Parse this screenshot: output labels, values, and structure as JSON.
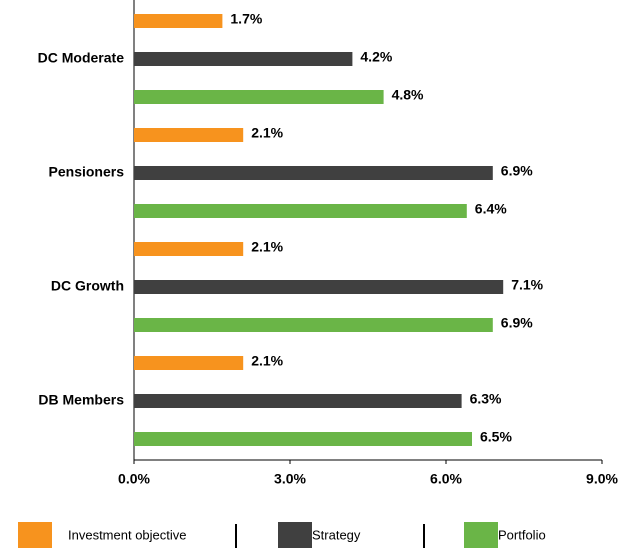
{
  "chart_data": {
    "type": "bar",
    "orientation": "horizontal",
    "categories": [
      "DC Moderate",
      "Pensioners",
      "DC Growth",
      "DB Members"
    ],
    "series": [
      {
        "name": "Investment objective",
        "color": "#f7931e",
        "values": [
          1.7,
          2.1,
          2.1,
          2.1
        ],
        "value_labels": [
          "1.7%",
          "2.1%",
          "2.1%",
          "2.1%"
        ]
      },
      {
        "name": "Strategy",
        "color": "#404040",
        "values": [
          4.2,
          6.9,
          7.1,
          6.3
        ],
        "value_labels": [
          "4.2%",
          "6.9%",
          "7.1%",
          "6.3%"
        ]
      },
      {
        "name": "Portfolio",
        "color": "#6ab547",
        "values": [
          4.8,
          6.4,
          6.9,
          6.5
        ],
        "value_labels": [
          "4.8%",
          "6.4%",
          "6.9%",
          "6.5%"
        ]
      }
    ],
    "xlim": [
      0,
      9
    ],
    "xticks": [
      {
        "value": 0,
        "label": "0.0%"
      },
      {
        "value": 3,
        "label": "3.0%"
      },
      {
        "value": 6,
        "label": "6.0%"
      },
      {
        "value": 9,
        "label": "9.0%"
      }
    ],
    "legend": "bottom"
  }
}
